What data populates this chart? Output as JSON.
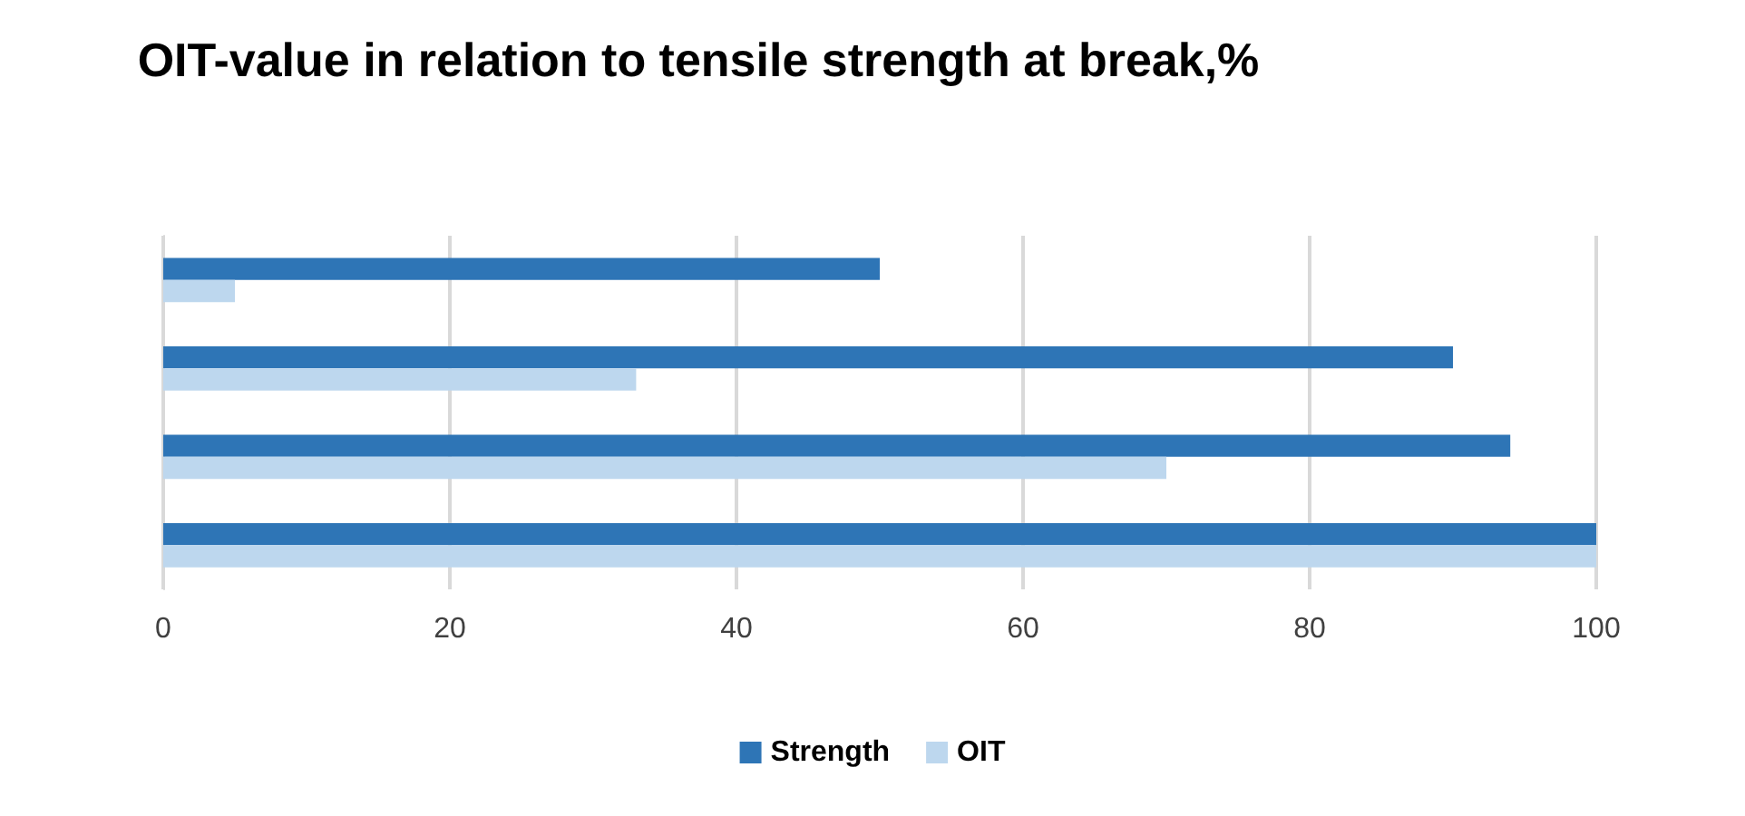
{
  "chart_data": {
    "type": "bar",
    "orientation": "horizontal",
    "title": "OIT-value in relation to tensile strength at break,%",
    "categories": [
      null,
      null,
      null,
      null
    ],
    "series": [
      {
        "name": "Strength",
        "color": "#2e75b6",
        "values": [
          50,
          90,
          94,
          100
        ]
      },
      {
        "name": "OIT",
        "color": "#bdd7ee",
        "values": [
          5,
          33,
          70,
          100
        ]
      }
    ],
    "xlim": [
      0,
      100
    ],
    "xticks": [
      0,
      20,
      40,
      60,
      80,
      100
    ],
    "grid": "x",
    "legend": "bottom"
  }
}
